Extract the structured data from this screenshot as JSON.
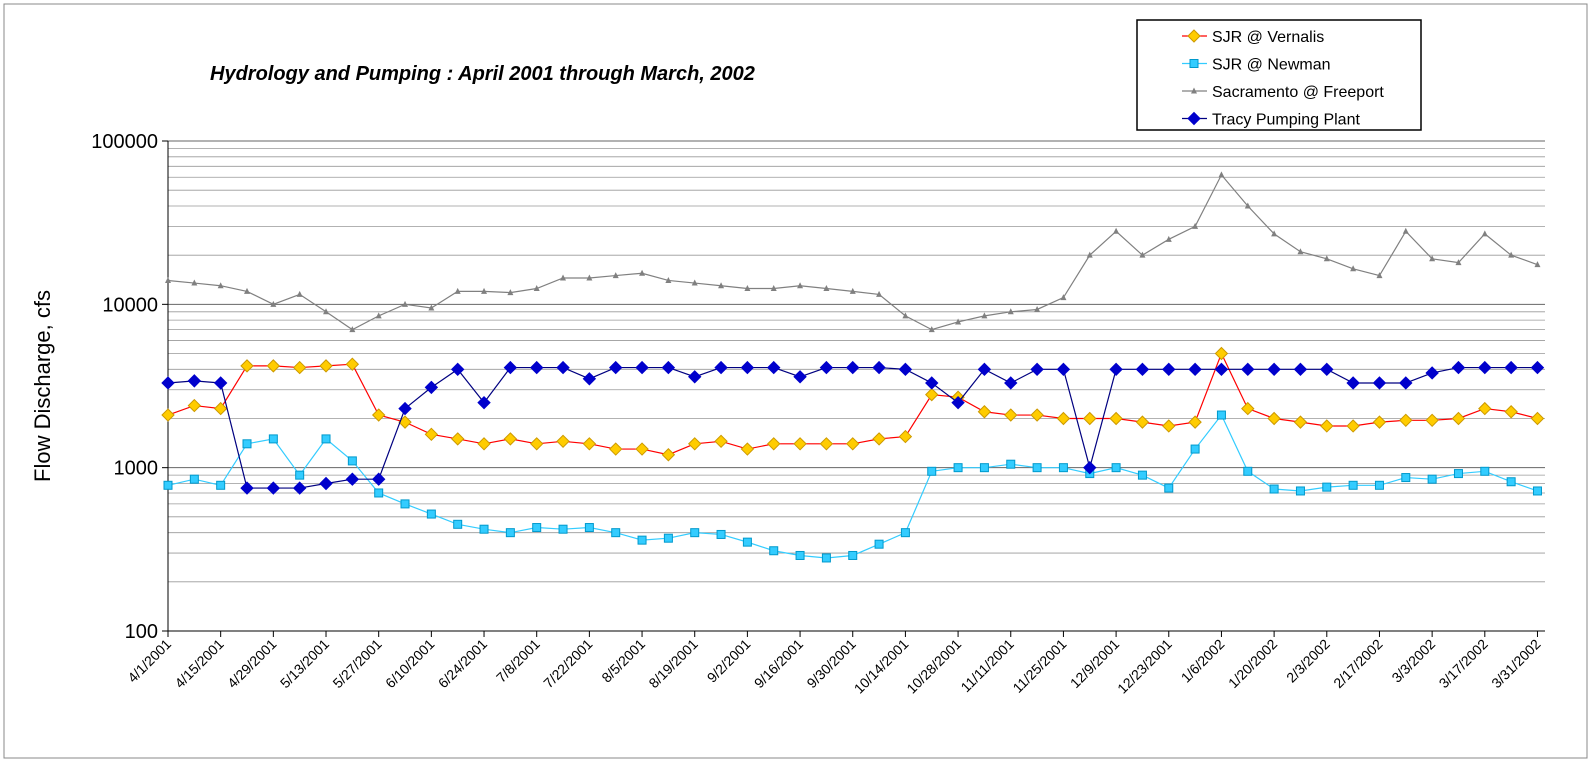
{
  "chart_data": {
    "type": "line",
    "title": "Hydrology and Pumping : April 2001 through March, 2002",
    "y_label": "Flow Discharge, cfs",
    "log_scale": true,
    "grid": true,
    "minor_grid": true,
    "legend": "top-right",
    "ylim": [
      100,
      100000
    ],
    "yticks": [
      100,
      1000,
      10000,
      100000
    ],
    "xlim": [
      "4/1/2001",
      "4/2/2002"
    ],
    "xticks": [
      "4/1/2001",
      "4/15/2001",
      "4/29/2001",
      "5/13/2001",
      "5/27/2001",
      "6/10/2001",
      "6/24/2001",
      "7/8/2001",
      "7/22/2001",
      "8/5/2001",
      "8/19/2001",
      "9/2/2001",
      "9/16/2001",
      "9/30/2001",
      "10/14/2001",
      "10/28/2001",
      "11/11/2001",
      "11/25/2001",
      "12/9/2001",
      "12/23/2001",
      "1/6/2002",
      "1/20/2002",
      "2/3/2002",
      "2/17/2002",
      "3/3/2002",
      "3/17/2002",
      "3/31/2002"
    ],
    "x": [
      "4/1/2001",
      "4/8/2001",
      "4/15/2001",
      "4/22/2001",
      "4/29/2001",
      "5/6/2001",
      "5/13/2001",
      "5/20/2001",
      "5/27/2001",
      "6/3/2001",
      "6/10/2001",
      "6/17/2001",
      "6/24/2001",
      "7/1/2001",
      "7/8/2001",
      "7/15/2001",
      "7/22/2001",
      "7/29/2001",
      "8/5/2001",
      "8/12/2001",
      "8/19/2001",
      "8/26/2001",
      "9/2/2001",
      "9/9/2001",
      "9/16/2001",
      "9/23/2001",
      "9/30/2001",
      "10/7/2001",
      "10/14/2001",
      "10/21/2001",
      "10/28/2001",
      "11/4/2001",
      "11/11/2001",
      "11/18/2001",
      "11/25/2001",
      "12/2/2001",
      "12/9/2001",
      "12/16/2001",
      "12/23/2001",
      "12/30/2001",
      "1/6/2002",
      "1/13/2002",
      "1/20/2002",
      "1/27/2002",
      "2/3/2002",
      "2/10/2002",
      "2/17/2002",
      "2/24/2002",
      "3/3/2002",
      "3/10/2002",
      "3/17/2002",
      "3/24/2002",
      "3/31/2002"
    ],
    "series": [
      {
        "name": "SJR @ Vernalis",
        "color": "#ffcc00",
        "line_color": "#ff0000",
        "marker": "diamond",
        "values": [
          2100,
          2400,
          2300,
          4200,
          4200,
          4100,
          4200,
          4300,
          2100,
          1900,
          1600,
          1500,
          1400,
          1500,
          1400,
          1450,
          1400,
          1300,
          1300,
          1200,
          1400,
          1450,
          1300,
          1400,
          1400,
          1400,
          1400,
          1500,
          1550,
          2800,
          2700,
          2200,
          2100,
          2100,
          2000,
          2000,
          2000,
          1900,
          1800,
          1900,
          5000,
          2300,
          2000,
          1900,
          1800,
          1800,
          1900,
          1950,
          1950,
          2000,
          2300,
          2200,
          2000
        ]
      },
      {
        "name": "SJR @ Newman",
        "color": "#33ccff",
        "line_color": "#33ccff",
        "marker": "square",
        "values": [
          780,
          850,
          780,
          1400,
          1500,
          900,
          1500,
          1100,
          700,
          600,
          520,
          450,
          420,
          400,
          430,
          420,
          430,
          400,
          360,
          370,
          400,
          390,
          350,
          310,
          290,
          280,
          290,
          340,
          400,
          950,
          1000,
          1000,
          1050,
          1000,
          1000,
          920,
          1000,
          900,
          750,
          1300,
          2100,
          950,
          740,
          720,
          760,
          780,
          780,
          870,
          850,
          920,
          950,
          820,
          720
        ]
      },
      {
        "name": "Sacramento @ Freeport",
        "color": "#808080",
        "line_color": "#808080",
        "marker": "triangle",
        "values": [
          14000,
          13500,
          13000,
          12000,
          10000,
          11500,
          9000,
          7000,
          8500,
          10000,
          9500,
          12000,
          12000,
          11800,
          12500,
          14500,
          14500,
          15000,
          15500,
          14000,
          13500,
          13000,
          12500,
          12500,
          13000,
          12500,
          12000,
          11500,
          8500,
          7000,
          7800,
          8500,
          9000,
          9300,
          11000,
          20000,
          28000,
          20000,
          25000,
          30000,
          62000,
          40000,
          27000,
          21000,
          19000,
          16500,
          15000,
          28000,
          19000,
          18000,
          27000,
          20000,
          17500
        ]
      },
      {
        "name": "Tracy Pumping Plant",
        "color": "#0000cc",
        "line_color": "#000080",
        "marker": "diamond",
        "values": [
          3300,
          3400,
          3300,
          750,
          750,
          750,
          800,
          850,
          850,
          2300,
          3100,
          4000,
          2500,
          4100,
          4100,
          4100,
          3500,
          4100,
          4100,
          4100,
          3600,
          4100,
          4100,
          4100,
          3600,
          4100,
          4100,
          4100,
          4000,
          3300,
          2500,
          4000,
          3300,
          4000,
          4000,
          1000,
          4000,
          4000,
          4000,
          4000,
          4000,
          4000,
          4000,
          4000,
          4000,
          3300,
          3300,
          3300,
          3800,
          4100,
          4100,
          4100,
          4100
        ]
      }
    ]
  }
}
